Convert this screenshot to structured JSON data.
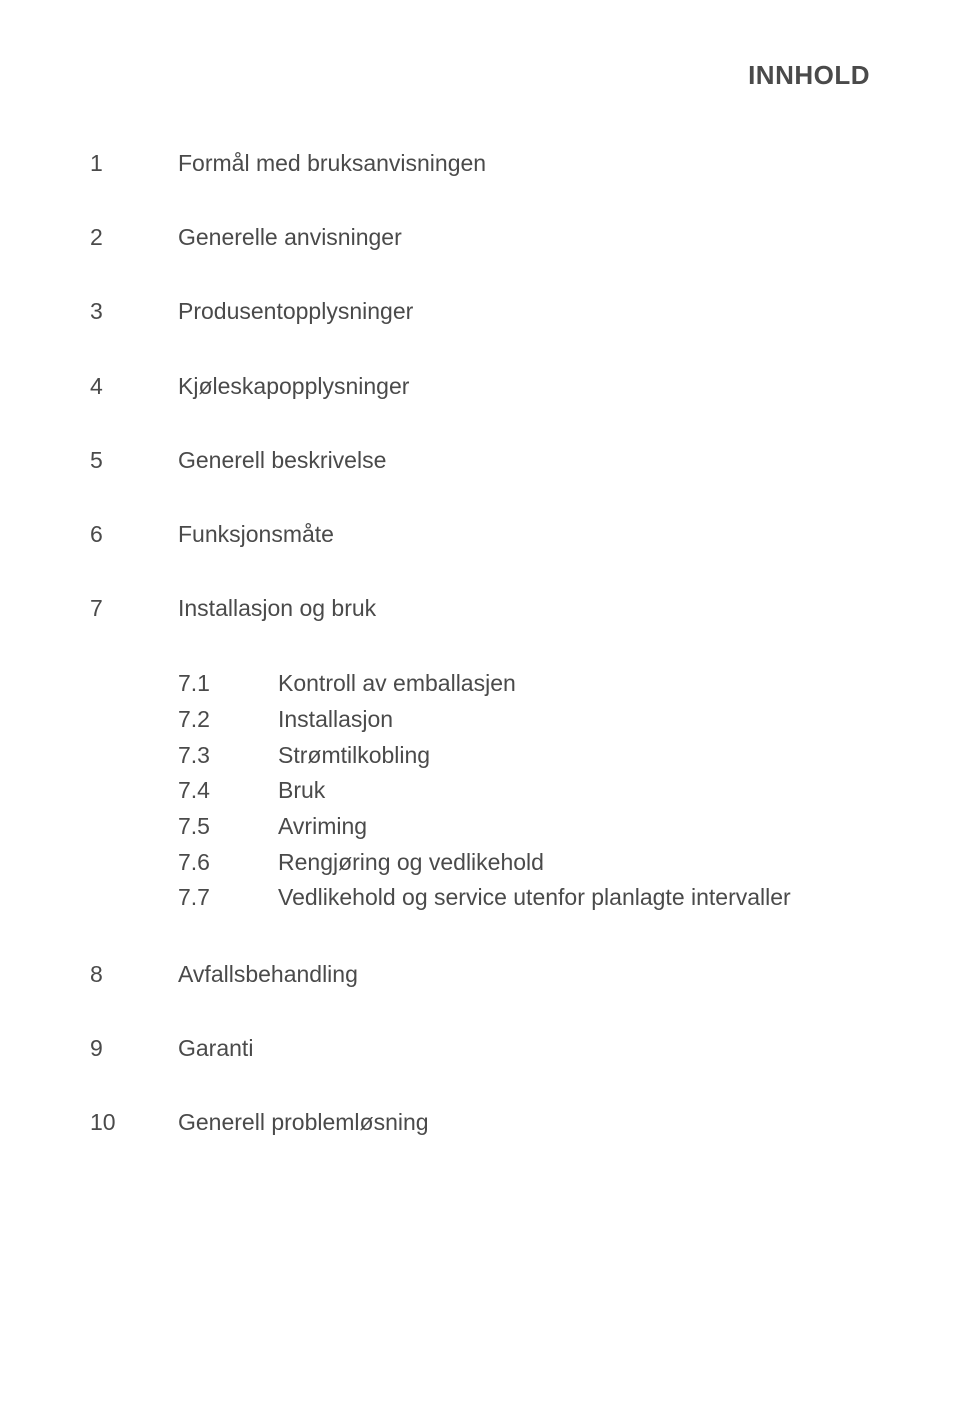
{
  "title": "INNHOLD",
  "items": {
    "i0": {
      "num": "1",
      "label": "Formål med bruksanvisningen"
    },
    "i1": {
      "num": "2",
      "label": "Generelle anvisninger"
    },
    "i2": {
      "num": "3",
      "label": "Produsentopplysninger"
    },
    "i3": {
      "num": "4",
      "label": "Kjøleskapopplysninger"
    },
    "i4": {
      "num": "5",
      "label": "Generell beskrivelse"
    },
    "i5": {
      "num": "6",
      "label": "Funksjonsmåte"
    },
    "i6": {
      "num": "7",
      "label": "Installasjon og bruk"
    },
    "i7": {
      "num": "8",
      "label": "Avfallsbehandling"
    },
    "i8": {
      "num": "9",
      "label": "Garanti"
    },
    "i9": {
      "num": "10",
      "label": "Generell problemløsning"
    }
  },
  "subs": {
    "s0": {
      "num": "7.1",
      "label": "Kontroll av emballasjen"
    },
    "s1": {
      "num": "7.2",
      "label": "Installasjon"
    },
    "s2": {
      "num": "7.3",
      "label": "Strømtilkobling"
    },
    "s3": {
      "num": "7.4",
      "label": "Bruk"
    },
    "s4": {
      "num": "7.5",
      "label": "Avriming"
    },
    "s5": {
      "num": "7.6",
      "label": "Rengjøring og vedlikehold"
    },
    "s6": {
      "num": "7.7",
      "label": "Vedlikehold og service utenfor planlagte intervaller"
    }
  },
  "style": {
    "text_color": "#4a4a4a",
    "background": "#ffffff",
    "title_fontsize": 26,
    "body_fontsize": 23
  }
}
